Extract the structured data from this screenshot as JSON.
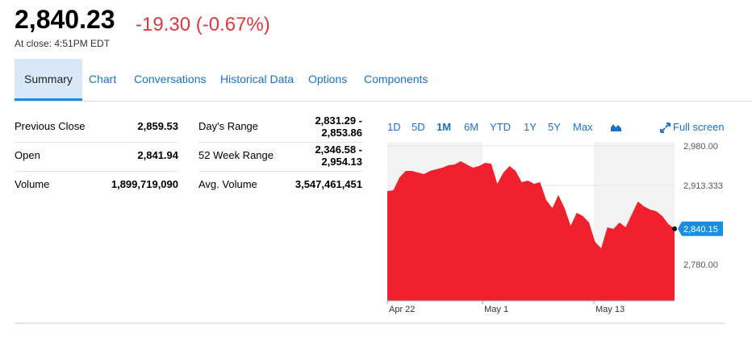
{
  "quote": {
    "price": "2,840.23",
    "change": "-19.30 (-0.67%)",
    "time": "At close: 4:51PM EDT"
  },
  "tabs": [
    "Summary",
    "Chart",
    "Conversations",
    "Historical Data",
    "Options",
    "Components"
  ],
  "stats": [
    [
      {
        "label": "Previous Close",
        "value": "2,859.53"
      },
      {
        "label": "Open",
        "value": "2,841.94"
      },
      {
        "label": "Volume",
        "value": "1,899,719,090"
      }
    ],
    [
      {
        "label": "Day's Range",
        "value": "2,831.29 - 2,853.86"
      },
      {
        "label": "52 Week Range",
        "value": "2,346.58 - 2,954.13"
      },
      {
        "label": "Avg. Volume",
        "value": "3,547,461,451"
      }
    ]
  ],
  "ranges": [
    "1D",
    "5D",
    "1M",
    "6M",
    "YTD",
    "1Y",
    "5Y",
    "Max"
  ],
  "full_screen": "Full screen",
  "chart": {
    "type": "area",
    "color": "#f0202e",
    "values": [
      2903.8,
      2905.2,
      2926.9,
      2937.8,
      2937.8,
      2935.1,
      2932.4,
      2937.8,
      2940.5,
      2943.3,
      2947.3,
      2948.7,
      2954.2,
      2948.7,
      2943.3,
      2946.0,
      2951.4,
      2950.1,
      2916.1,
      2935.1,
      2946.0,
      2937.8,
      2918.8,
      2921.5,
      2916.1,
      2918.8,
      2888.8,
      2875.2,
      2897.0,
      2875.2,
      2845.3,
      2867.1,
      2861.6,
      2850.8,
      2818.1,
      2807.2,
      2842.6,
      2839.9,
      2850.8,
      2842.6,
      2864.4,
      2886.1,
      2878.0,
      2872.5,
      2869.8,
      2861.6,
      2848.0,
      2840.15
    ],
    "last_label": "2,840.15",
    "xlim": [
      0,
      47
    ],
    "xticks": [
      {
        "value": 0,
        "label": "Apr 22"
      },
      {
        "value": 15.6,
        "label": "May 1"
      },
      {
        "value": 33.8,
        "label": "May 13"
      }
    ],
    "ylim": [
      2718.8,
      2986.8
    ],
    "yticks": [
      {
        "value": 2780,
        "label": "2,780.00"
      },
      {
        "value": 2913.333,
        "label": "2,913.333"
      },
      {
        "value": 2980,
        "label": "2,980.00"
      }
    ]
  }
}
